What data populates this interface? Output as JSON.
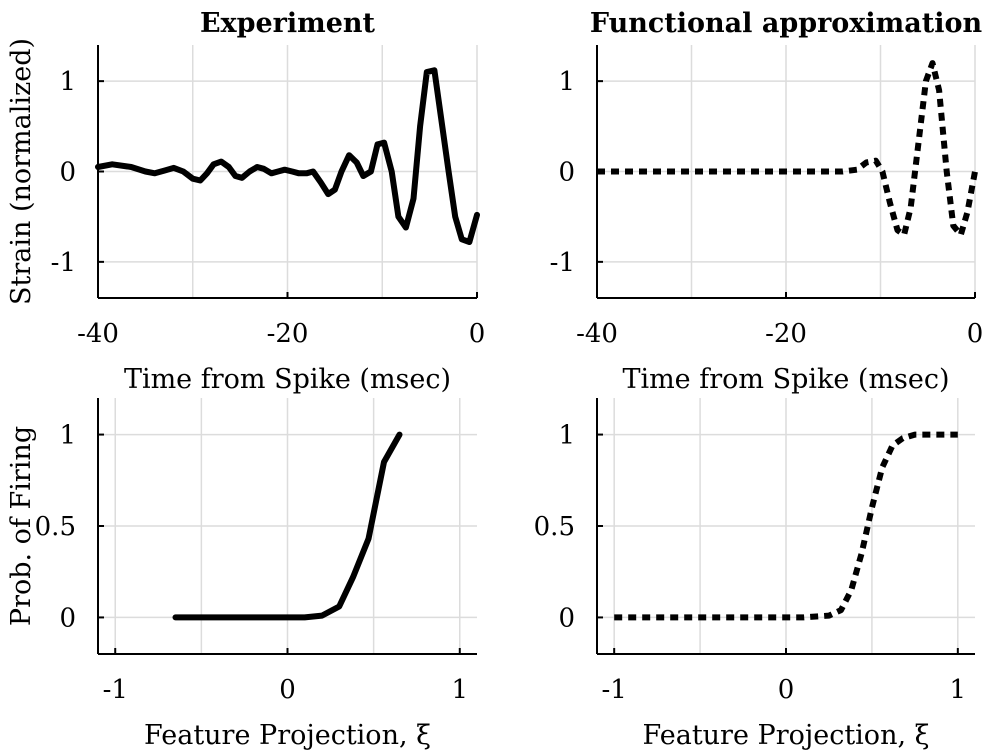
{
  "chart_data": [
    {
      "type": "line",
      "title": "Experiment",
      "xlabel": "Time from Spike (msec)",
      "ylabel": "Strain (normalized)",
      "xlim": [
        -40,
        0
      ],
      "ylim": [
        -1.4,
        1.4
      ],
      "xticks": [
        -40,
        -20,
        0
      ],
      "xtick_labels": [
        "-40",
        "-20",
        "0"
      ],
      "yticks": [
        -1,
        0,
        1
      ],
      "ytick_labels": [
        "-1",
        "0",
        "1"
      ],
      "grid": true,
      "line_style": "solid",
      "series": [
        {
          "x": [
            -40,
            -38.5,
            -36.5,
            -35,
            -34,
            -33,
            -32,
            -31,
            -30,
            -29.2,
            -28.5,
            -27.8,
            -27,
            -26.2,
            -25.5,
            -24.8,
            -24,
            -23.2,
            -22.5,
            -21.7,
            -21,
            -20.3,
            -19.5,
            -18.8,
            -18,
            -17.3,
            -16.5,
            -15.7,
            -15,
            -14.3,
            -13.5,
            -12.7,
            -12,
            -11.2,
            -10.5,
            -9.8,
            -9,
            -8.3,
            -7.5,
            -6.7,
            -6,
            -5.3,
            -4.5,
            -3.8,
            -3,
            -2.3,
            -1.6,
            -0.8,
            0
          ],
          "y": [
            0.05,
            0.08,
            0.05,
            0.0,
            -0.02,
            0.01,
            0.04,
            0.0,
            -0.08,
            -0.1,
            -0.02,
            0.08,
            0.11,
            0.05,
            -0.05,
            -0.07,
            0.0,
            0.05,
            0.03,
            -0.02,
            0.0,
            0.02,
            0.0,
            -0.02,
            -0.02,
            0.0,
            -0.12,
            -0.25,
            -0.2,
            0.0,
            0.18,
            0.1,
            -0.05,
            0.0,
            0.3,
            0.32,
            0.0,
            -0.5,
            -0.62,
            -0.3,
            0.5,
            1.1,
            1.12,
            0.6,
            0.0,
            -0.5,
            -0.75,
            -0.78,
            -0.48
          ]
        }
      ]
    },
    {
      "type": "line",
      "title": "Functional approximation",
      "xlabel": "Time from Spike (msec)",
      "ylabel": "",
      "xlim": [
        -40,
        0
      ],
      "ylim": [
        -1.4,
        1.4
      ],
      "xticks": [
        -40,
        -20,
        0
      ],
      "xtick_labels": [
        "-40",
        "-20",
        "0"
      ],
      "yticks": [
        -1,
        0,
        1
      ],
      "ytick_labels": [
        "-1",
        "0",
        "1"
      ],
      "grid": true,
      "line_style": "dashed",
      "series": [
        {
          "x": [
            -40,
            -30,
            -20,
            -14,
            -12.5,
            -11.5,
            -10.5,
            -9.8,
            -9,
            -8.2,
            -7.5,
            -6.8,
            -6,
            -5.2,
            -4.5,
            -3.8,
            -3,
            -2.3,
            -1.5,
            -0.8,
            0
          ],
          "y": [
            0,
            0,
            0,
            0,
            0.02,
            0.1,
            0.12,
            0.0,
            -0.35,
            -0.65,
            -0.7,
            -0.4,
            0.3,
            1.0,
            1.2,
            0.9,
            0.0,
            -0.6,
            -0.7,
            -0.45,
            0.0
          ]
        }
      ]
    },
    {
      "type": "line",
      "title": "",
      "xlabel": "Feature Projection, ξ",
      "ylabel": "Prob. of Firing",
      "xlim": [
        -1.1,
        1.1
      ],
      "ylim": [
        -0.2,
        1.2
      ],
      "xticks": [
        -1,
        0,
        1
      ],
      "xtick_labels": [
        "-1",
        "0",
        "1"
      ],
      "yticks": [
        0,
        0.5,
        1
      ],
      "ytick_labels": [
        "0",
        "0.5",
        "1"
      ],
      "grid": true,
      "line_style": "solid",
      "series": [
        {
          "x": [
            -0.65,
            -0.5,
            -0.3,
            -0.1,
            0.1,
            0.2,
            0.3,
            0.38,
            0.47,
            0.56,
            0.65
          ],
          "y": [
            0,
            0,
            0,
            0,
            0,
            0.01,
            0.06,
            0.22,
            0.43,
            0.85,
            1.0
          ]
        }
      ]
    },
    {
      "type": "line",
      "title": "",
      "xlabel": "Feature Projection, ξ",
      "ylabel": "",
      "xlim": [
        -1.1,
        1.1
      ],
      "ylim": [
        -0.2,
        1.2
      ],
      "xticks": [
        -1,
        0,
        1
      ],
      "xtick_labels": [
        "-1",
        "0",
        "1"
      ],
      "yticks": [
        0,
        0.5,
        1
      ],
      "ytick_labels": [
        "0",
        "0.5",
        "1"
      ],
      "grid": true,
      "line_style": "dashed",
      "series": [
        {
          "x": [
            -1,
            -0.6,
            -0.2,
            0.1,
            0.25,
            0.32,
            0.38,
            0.44,
            0.5,
            0.56,
            0.62,
            0.68,
            0.75,
            0.85,
            1.0
          ],
          "y": [
            0,
            0,
            0,
            0,
            0.01,
            0.04,
            0.15,
            0.35,
            0.6,
            0.82,
            0.94,
            0.98,
            1.0,
            1.0,
            1.0
          ]
        }
      ]
    }
  ]
}
